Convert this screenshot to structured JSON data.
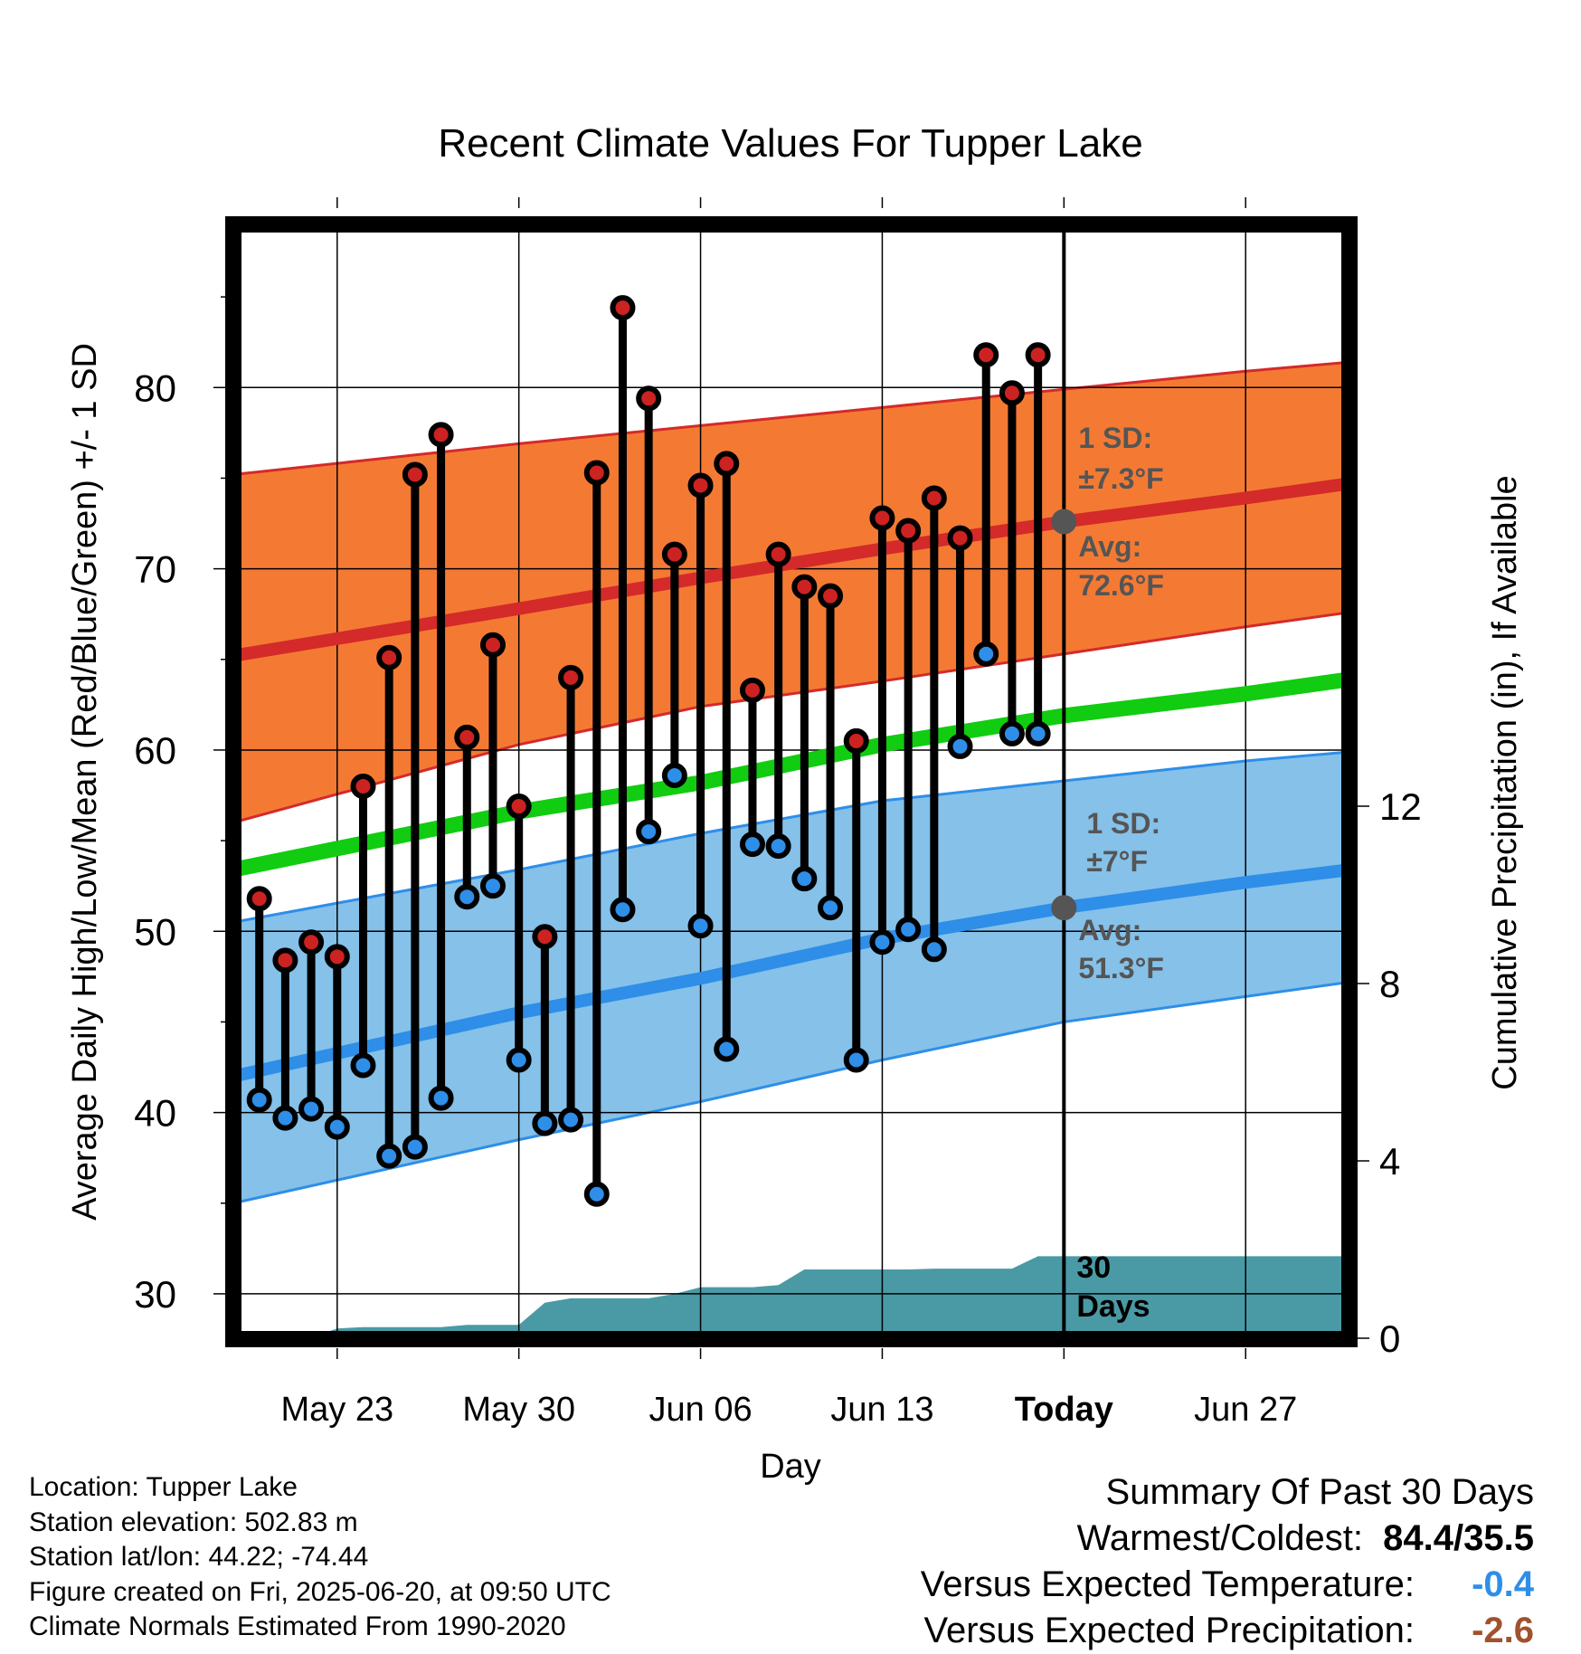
{
  "chart_data": {
    "type": "line",
    "title": "Recent Climate Values For Tupper Lake",
    "xlabel": "Day",
    "ylabel": "Average Daily High/Low/Mean (Red/Blue/Green) +/- 1 SD",
    "y2label": "Cumulative Precipitation (in), If Available",
    "ylim": [
      27.5,
      89
    ],
    "y_ticks": [
      30,
      40,
      50,
      60,
      70,
      80
    ],
    "y2lim": [
      0,
      16
    ],
    "y2_ticks": [
      0,
      4,
      8,
      12
    ],
    "x_range_days": [
      "2025-05-19",
      "2025-07-01"
    ],
    "x_ticks": [
      {
        "date": "2025-05-23",
        "label": "May 23"
      },
      {
        "date": "2025-05-30",
        "label": "May 30"
      },
      {
        "date": "2025-06-06",
        "label": "Jun 06"
      },
      {
        "date": "2025-06-13",
        "label": "Jun 13"
      },
      {
        "date": "2025-06-20",
        "label": "Today"
      },
      {
        "date": "2025-06-27",
        "label": "Jun 27"
      }
    ],
    "today": "2025-06-20",
    "normals": {
      "dates": [
        "2025-05-19",
        "2025-05-30",
        "2025-06-06",
        "2025-06-13",
        "2025-06-20",
        "2025-06-27",
        "2025-07-01"
      ],
      "high_mean": [
        65.2,
        67.8,
        69.5,
        71.1,
        72.6,
        73.9,
        74.7
      ],
      "high_upper": [
        75.2,
        76.9,
        77.9,
        78.9,
        79.9,
        80.9,
        81.4
      ],
      "high_lower": [
        56.0,
        60.3,
        62.4,
        63.8,
        65.3,
        66.8,
        67.6
      ],
      "low_mean": [
        42.0,
        45.5,
        47.4,
        49.6,
        51.3,
        52.7,
        53.4
      ],
      "low_upper": [
        50.5,
        53.4,
        55.4,
        57.2,
        58.3,
        59.4,
        59.9
      ],
      "low_lower": [
        35.0,
        38.5,
        40.6,
        42.9,
        45.0,
        46.4,
        47.2
      ],
      "mean": [
        53.4,
        56.6,
        58.2,
        60.3,
        61.9,
        63.1,
        63.9
      ]
    },
    "series": [
      {
        "name": "High",
        "color": "#cc2222",
        "x": [
          "2025-05-20",
          "2025-05-21",
          "2025-05-22",
          "2025-05-23",
          "2025-05-24",
          "2025-05-25",
          "2025-05-26",
          "2025-05-27",
          "2025-05-28",
          "2025-05-29",
          "2025-05-30",
          "2025-05-31",
          "2025-06-01",
          "2025-06-02",
          "2025-06-03",
          "2025-06-04",
          "2025-06-05",
          "2025-06-06",
          "2025-06-07",
          "2025-06-08",
          "2025-06-09",
          "2025-06-10",
          "2025-06-11",
          "2025-06-12",
          "2025-06-13",
          "2025-06-14",
          "2025-06-15",
          "2025-06-16",
          "2025-06-17",
          "2025-06-18",
          "2025-06-19"
        ],
        "values": [
          51.8,
          48.4,
          49.4,
          48.6,
          58.0,
          65.1,
          75.2,
          77.4,
          60.7,
          65.8,
          56.9,
          49.7,
          64.0,
          75.3,
          84.4,
          79.4,
          70.8,
          74.6,
          75.8,
          63.3,
          70.8,
          69.0,
          68.5,
          60.5,
          72.8,
          72.1,
          73.9,
          71.7,
          81.8,
          79.7,
          81.8
        ]
      },
      {
        "name": "Low",
        "color": "#2e8ee8",
        "x": [
          "2025-05-20",
          "2025-05-21",
          "2025-05-22",
          "2025-05-23",
          "2025-05-24",
          "2025-05-25",
          "2025-05-26",
          "2025-05-27",
          "2025-05-28",
          "2025-05-29",
          "2025-05-30",
          "2025-05-31",
          "2025-06-01",
          "2025-06-02",
          "2025-06-03",
          "2025-06-04",
          "2025-06-05",
          "2025-06-06",
          "2025-06-07",
          "2025-06-08",
          "2025-06-09",
          "2025-06-10",
          "2025-06-11",
          "2025-06-12",
          "2025-06-13",
          "2025-06-14",
          "2025-06-15",
          "2025-06-16",
          "2025-06-17",
          "2025-06-18",
          "2025-06-19"
        ],
        "values": [
          40.7,
          39.7,
          40.2,
          39.2,
          42.6,
          37.6,
          38.1,
          40.8,
          51.9,
          52.5,
          42.9,
          39.4,
          39.6,
          35.5,
          51.2,
          55.5,
          58.6,
          50.3,
          43.5,
          54.8,
          54.7,
          52.9,
          51.3,
          42.9,
          49.4,
          50.1,
          49.0,
          60.2,
          65.3,
          60.9,
          60.9
        ]
      }
    ],
    "precip_cumulative": {
      "x": [
        "2025-05-19",
        "2025-05-21",
        "2025-05-22",
        "2025-05-23",
        "2025-05-24",
        "2025-05-25",
        "2025-05-26",
        "2025-05-27",
        "2025-05-28",
        "2025-05-29",
        "2025-05-30",
        "2025-05-31",
        "2025-06-01",
        "2025-06-02",
        "2025-06-03",
        "2025-06-04",
        "2025-06-05",
        "2025-06-06",
        "2025-06-07",
        "2025-06-08",
        "2025-06-09",
        "2025-06-10",
        "2025-06-11",
        "2025-06-12",
        "2025-06-13",
        "2025-06-14",
        "2025-06-15",
        "2025-06-16",
        "2025-06-17",
        "2025-06-18",
        "2025-06-19",
        "2025-07-01"
      ],
      "values": [
        0,
        0,
        0.02,
        0.22,
        0.25,
        0.25,
        0.25,
        0.25,
        0.3,
        0.3,
        0.3,
        0.8,
        0.9,
        0.9,
        0.9,
        0.9,
        1.0,
        1.15,
        1.15,
        1.15,
        1.2,
        1.55,
        1.55,
        1.55,
        1.55,
        1.55,
        1.57,
        1.57,
        1.57,
        1.57,
        1.85,
        1.85
      ]
    },
    "annotations": {
      "high_sd_label": "1 SD:",
      "high_sd_value": "±7.3°F",
      "high_avg_label": "Avg:",
      "high_avg_value": "72.6°F",
      "low_sd_label": "1 SD:",
      "low_sd_value": "±7°F",
      "low_avg_label": "Avg:",
      "low_avg_value": "51.3°F",
      "days_label_1": "30",
      "days_label_2": "Days"
    },
    "colors": {
      "high_band": "#f47a33",
      "high_line": "#d42a2a",
      "low_band": "#85c1e9",
      "low_line": "#2e8ee8",
      "mean_line": "#11cc11",
      "precip_fill": "#4a9aa5",
      "annotation_text": "#555555",
      "avg_dot": "#555555"
    }
  },
  "info": {
    "location": "Location: Tupper Lake",
    "elevation": "Station elevation: 502.83 m",
    "latlon": "Station lat/lon: 44.22; -74.44",
    "created": "Figure created on Fri, 2025-06-20, at 09:50 UTC",
    "normals": "Climate Normals Estimated From 1990-2020"
  },
  "summary": {
    "title": "Summary Of Past 30 Days",
    "warm_cold_label": "Warmest/Coldest:",
    "warm_cold_value": "84.4/35.5",
    "temp_label": "Versus Expected Temperature:",
    "temp_value": "-0.4",
    "temp_color": "#2e8ee8",
    "precip_label": "Versus Expected Precipitation:",
    "precip_value": "-2.6",
    "precip_color": "#a0522d"
  }
}
